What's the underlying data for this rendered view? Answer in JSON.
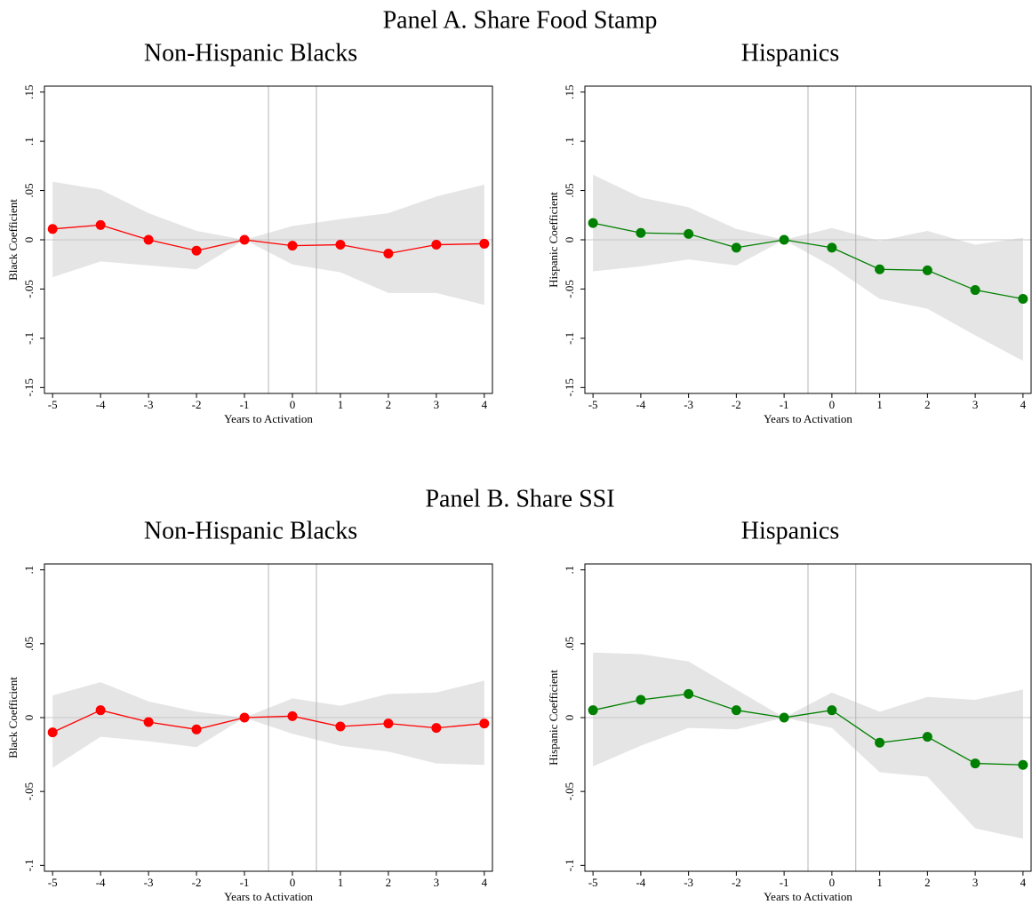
{
  "panel_titles": [
    "Panel A. Share Food Stamp",
    "Panel B. Share SSI"
  ],
  "chart_data": [
    {
      "type": "line",
      "title": "Non-Hispanic Blacks",
      "xlabel": "Years to Activation",
      "ylabel": "Black Coefficient",
      "x": [
        -5,
        -4,
        -3,
        -2,
        -1,
        0,
        1,
        2,
        3,
        4
      ],
      "values": [
        0.011,
        0.015,
        0,
        -0.011,
        0,
        -0.006,
        -0.005,
        -0.014,
        -0.005,
        -0.004
      ],
      "ci_upper": [
        0.059,
        0.051,
        0.027,
        0.009,
        0,
        0.014,
        0.021,
        0.027,
        0.044,
        0.056
      ],
      "ci_lower": [
        -0.038,
        -0.022,
        -0.026,
        -0.03,
        0,
        -0.025,
        -0.033,
        -0.054,
        -0.054,
        -0.066
      ],
      "color": "#ff0000",
      "band_color": "#e5e5e5",
      "xlim": [
        -5.17,
        4.17
      ],
      "ylim": [
        -0.156,
        0.156
      ],
      "xticks": [
        -5,
        -4,
        -3,
        -2,
        -1,
        0,
        1,
        2,
        3,
        4
      ],
      "yticks": [
        {
          "value": -0.15,
          "label": "-.15"
        },
        {
          "value": -0.1,
          "label": "-.1"
        },
        {
          "value": -0.05,
          "label": "-.05"
        },
        0,
        {
          "value": 0.05,
          "label": ".05"
        },
        {
          "value": 0.1,
          "label": ".1"
        },
        {
          "value": 0.15,
          "label": ".15"
        }
      ],
      "hline": 0,
      "vlines": [
        -0.5,
        0.5
      ]
    },
    {
      "type": "line",
      "title": "Hispanics",
      "xlabel": "Years to Activation",
      "ylabel": "Hispanic Coefficient",
      "x": [
        -5,
        -4,
        -3,
        -2,
        -1,
        0,
        1,
        2,
        3,
        4
      ],
      "values": [
        0.017,
        0.007,
        0.006,
        -0.008,
        0,
        -0.008,
        -0.03,
        -0.031,
        -0.051,
        -0.06
      ],
      "ci_upper": [
        0.066,
        0.043,
        0.033,
        0.011,
        0,
        0.012,
        -0.001,
        0.009,
        -0.005,
        0.002
      ],
      "ci_lower": [
        -0.032,
        -0.027,
        -0.02,
        -0.026,
        0,
        -0.027,
        -0.06,
        -0.07,
        -0.097,
        -0.123
      ],
      "color": "#008000",
      "band_color": "#e5e5e5",
      "xlim": [
        -5.17,
        4.17
      ],
      "ylim": [
        -0.156,
        0.156
      ],
      "xticks": [
        -5,
        -4,
        -3,
        -2,
        -1,
        0,
        1,
        2,
        3,
        4
      ],
      "yticks": [
        {
          "value": -0.15,
          "label": "-.15"
        },
        {
          "value": -0.1,
          "label": "-.1"
        },
        {
          "value": -0.05,
          "label": "-.05"
        },
        0,
        {
          "value": 0.05,
          "label": ".05"
        },
        {
          "value": 0.1,
          "label": ".1"
        },
        {
          "value": 0.15,
          "label": ".15"
        }
      ],
      "hline": 0,
      "vlines": [
        -0.5,
        0.5
      ]
    },
    {
      "type": "line",
      "title": "Non-Hispanic Blacks",
      "xlabel": "Years to Activation",
      "ylabel": "Black Coefficient",
      "x": [
        -5,
        -4,
        -3,
        -2,
        -1,
        0,
        1,
        2,
        3,
        4
      ],
      "values": [
        -0.01,
        0.005,
        -0.003,
        -0.008,
        0,
        0.001,
        -0.006,
        -0.004,
        -0.007,
        -0.004
      ],
      "ci_upper": [
        0.015,
        0.024,
        0.011,
        0.004,
        0,
        0.013,
        0.008,
        0.016,
        0.017,
        0.025
      ],
      "ci_lower": [
        -0.034,
        -0.013,
        -0.016,
        -0.02,
        0,
        -0.011,
        -0.019,
        -0.023,
        -0.031,
        -0.032
      ],
      "color": "#ff0000",
      "band_color": "#e5e5e5",
      "xlim": [
        -5.17,
        4.17
      ],
      "ylim": [
        -0.104,
        0.104
      ],
      "xticks": [
        -5,
        -4,
        -3,
        -2,
        -1,
        0,
        1,
        2,
        3,
        4
      ],
      "yticks": [
        {
          "value": -0.1,
          "label": "-.1"
        },
        {
          "value": -0.05,
          "label": "-.05"
        },
        0,
        {
          "value": 0.05,
          "label": ".05"
        },
        {
          "value": 0.1,
          "label": ".1"
        }
      ],
      "hline": 0,
      "vlines": [
        -0.5,
        0.5
      ]
    },
    {
      "type": "line",
      "title": "Hispanics",
      "xlabel": "Years to Activation",
      "ylabel": "Hispanic Coefficient",
      "x": [
        -5,
        -4,
        -3,
        -2,
        -1,
        0,
        1,
        2,
        3,
        4
      ],
      "values": [
        0.005,
        0.012,
        0.016,
        0.005,
        0,
        0.005,
        -0.017,
        -0.013,
        -0.031,
        -0.032
      ],
      "ci_upper": [
        0.044,
        0.043,
        0.038,
        0.019,
        0,
        0.017,
        0.004,
        0.014,
        0.012,
        0.019
      ],
      "ci_lower": [
        -0.033,
        -0.019,
        -0.007,
        -0.008,
        0,
        -0.007,
        -0.037,
        -0.04,
        -0.075,
        -0.082
      ],
      "color": "#008000",
      "band_color": "#e5e5e5",
      "xlim": [
        -5.17,
        4.17
      ],
      "ylim": [
        -0.104,
        0.104
      ],
      "xticks": [
        -5,
        -4,
        -3,
        -2,
        -1,
        0,
        1,
        2,
        3,
        4
      ],
      "yticks": [
        {
          "value": -0.1,
          "label": "-.1"
        },
        {
          "value": -0.05,
          "label": "-.05"
        },
        0,
        {
          "value": 0.05,
          "label": ".05"
        },
        {
          "value": 0.1,
          "label": ".1"
        }
      ],
      "hline": 0,
      "vlines": [
        -0.5,
        0.5
      ]
    }
  ]
}
